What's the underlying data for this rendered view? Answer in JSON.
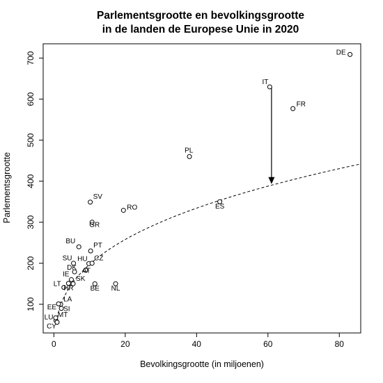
{
  "chart_data": {
    "type": "scatter",
    "title": [
      "Parlementsgrootte en bevolkingsgrootte",
      "in de landen de Europese Unie in 2020"
    ],
    "xlabel": "Bevolkingsgrootte (in miljoenen)",
    "ylabel": "Parlementsgrootte",
    "xlim": [
      -3,
      86
    ],
    "ylim": [
      30,
      735
    ],
    "xticks": [
      0,
      20,
      40,
      60,
      80
    ],
    "yticks": [
      100,
      200,
      300,
      400,
      500,
      600,
      700
    ],
    "grid": false,
    "points": [
      {
        "label": "DE",
        "x": 83.0,
        "y": 709
      },
      {
        "label": "IT",
        "x": 60.5,
        "y": 630
      },
      {
        "label": "FR",
        "x": 67.0,
        "y": 577
      },
      {
        "label": "PL",
        "x": 38.0,
        "y": 460
      },
      {
        "label": "ES",
        "x": 46.5,
        "y": 350
      },
      {
        "label": "SV",
        "x": 10.2,
        "y": 349
      },
      {
        "label": "RO",
        "x": 19.5,
        "y": 329
      },
      {
        "label": "GR",
        "x": 10.7,
        "y": 300
      },
      {
        "label": "BU",
        "x": 7.0,
        "y": 240
      },
      {
        "label": "PT",
        "x": 10.3,
        "y": 230
      },
      {
        "label": "SU",
        "x": 5.5,
        "y": 200
      },
      {
        "label": "HU",
        "x": 9.8,
        "y": 199
      },
      {
        "label": "CZ",
        "x": 10.7,
        "y": 200
      },
      {
        "label": "DK",
        "x": 5.8,
        "y": 179
      },
      {
        "label": "AT",
        "x": 8.9,
        "y": 183
      },
      {
        "label": "IE",
        "x": 4.9,
        "y": 160
      },
      {
        "label": "SK",
        "x": 5.4,
        "y": 150
      },
      {
        "label": "LT",
        "x": 2.8,
        "y": 141
      },
      {
        "label": "HR",
        "x": 4.1,
        "y": 151
      },
      {
        "label": "BE",
        "x": 11.5,
        "y": 150
      },
      {
        "label": "NL",
        "x": 17.3,
        "y": 150
      },
      {
        "label": "LA",
        "x": 1.9,
        "y": 100
      },
      {
        "label": "EE",
        "x": 1.3,
        "y": 101
      },
      {
        "label": "SI",
        "x": 2.1,
        "y": 90
      },
      {
        "label": "LU",
        "x": 0.6,
        "y": 60
      },
      {
        "label": "MT",
        "x": 0.5,
        "y": 67
      },
      {
        "label": "CY",
        "x": 0.9,
        "y": 56
      }
    ],
    "curve": {
      "style": "dashed",
      "form": "cube-root",
      "points": [
        [
          0.6,
          55
        ],
        [
          5,
          155
        ],
        [
          10,
          210
        ],
        [
          20,
          265
        ],
        [
          40,
          335
        ],
        [
          61,
          390
        ],
        [
          86,
          442
        ]
      ]
    },
    "annotations": [
      {
        "type": "arrow",
        "from": {
          "x": 61,
          "y": 630
        },
        "to": {
          "x": 61,
          "y": 393
        }
      }
    ]
  }
}
